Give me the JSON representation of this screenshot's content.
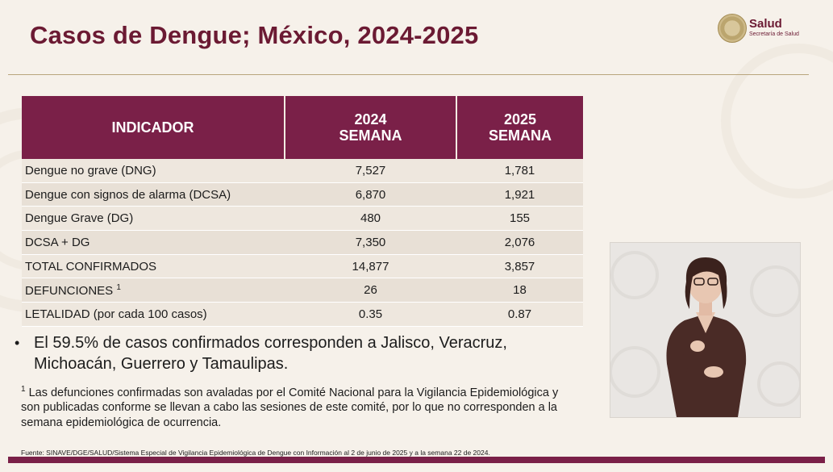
{
  "title": "Casos de Dengue; México, 2024-2025",
  "logo": {
    "brand": "Salud",
    "subtitle": "Secretaría de Salud"
  },
  "table": {
    "headers": {
      "indicator": "INDICADOR",
      "col2024_line1": "2024",
      "col2024_line2": "SEMANA",
      "col2025_line1": "2025",
      "col2025_line2": "SEMANA"
    },
    "rows": [
      {
        "label": "Dengue no grave ",
        "abbr": "(DNG)",
        "sup": "",
        "v2024": "7,527",
        "v2025": "1,781"
      },
      {
        "label": "Dengue con signos de alarma ",
        "abbr": "(DCSA)",
        "sup": "",
        "v2024": "6,870",
        "v2025": "1,921"
      },
      {
        "label": "Dengue Grave ",
        "abbr": "(DG)",
        "sup": "",
        "v2024": "480",
        "v2025": "155"
      },
      {
        "label": "DCSA + DG",
        "abbr": "",
        "sup": "",
        "v2024": "7,350",
        "v2025": "2,076"
      },
      {
        "label": "TOTAL CONFIRMADOS",
        "abbr": "",
        "sup": "",
        "v2024": "14,877",
        "v2025": "3,857"
      },
      {
        "label": "DEFUNCIONES ",
        "abbr": "",
        "sup": "1",
        "v2024": "26",
        "v2025": "18"
      },
      {
        "label": "LETALIDAD (por cada 100 casos)",
        "abbr": "",
        "sup": "",
        "v2024": "0.35",
        "v2025": "0.87"
      }
    ]
  },
  "bullet": {
    "marker": "•",
    "text": "El 59.5% de casos confirmados corresponden a Jalisco, Veracruz, Michoacán, Guerrero y Tamaulipas."
  },
  "footnote": {
    "marker": "1",
    "text": " Las defunciones confirmadas son avaladas por el Comité Nacional para la Vigilancia Epidemiológica y son publicadas conforme se llevan a cabo las sesiones de este comité, por lo que no corresponden a la semana epidemiológica de ocurrencia."
  },
  "source": "Fuente: SINAVE/DGE/SALUD/Sistema Especial de Vigilancia Epidemiológica de Dengue con Información al 2 de junio de 2025 y a la semana 22 de 2024.",
  "colors": {
    "primary": "#7a2048",
    "title": "#6b1a33",
    "background": "#f6f1ea",
    "row": "#eee7de"
  }
}
